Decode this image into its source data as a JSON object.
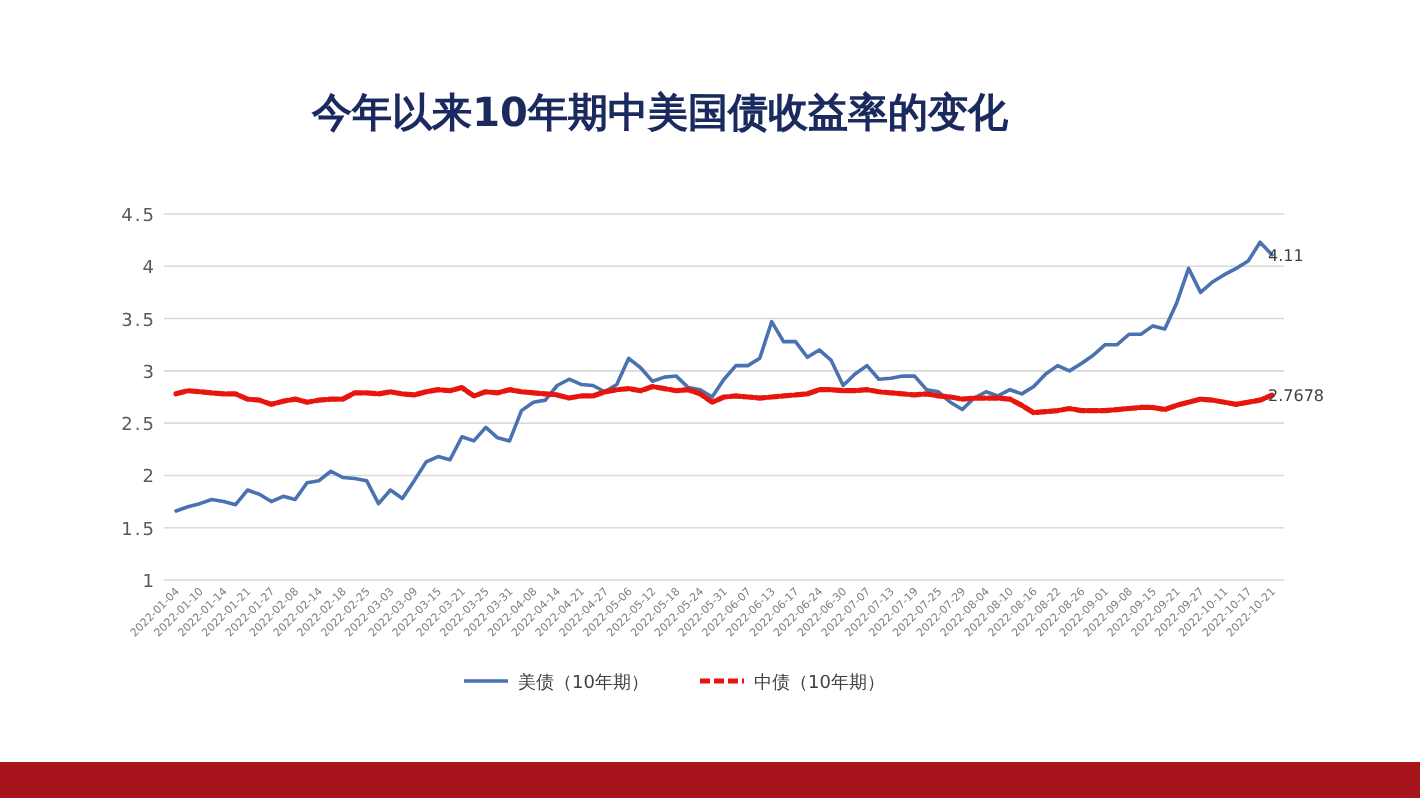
{
  "chart_data": {
    "type": "line",
    "title": "今年以来10年期中美国债收益率的变化",
    "categories": [
      "2022-01-04",
      null,
      "2022-01-10",
      null,
      "2022-01-14",
      null,
      "2022-01-21",
      null,
      "2022-01-27",
      null,
      "2022-02-08",
      null,
      "2022-02-14",
      null,
      "2022-02-18",
      null,
      "2022-02-25",
      null,
      "2022-03-03",
      null,
      "2022-03-09",
      null,
      "2022-03-15",
      null,
      "2022-03-21",
      null,
      "2022-03-25",
      null,
      "2022-03-31",
      null,
      "2022-04-08",
      null,
      "2022-04-14",
      null,
      "2022-04-21",
      null,
      "2022-04-27",
      null,
      "2022-05-06",
      null,
      "2022-05-12",
      null,
      "2022-05-18",
      null,
      "2022-05-24",
      null,
      "2022-05-31",
      null,
      "2022-06-07",
      null,
      "2022-06-13",
      null,
      "2022-06-17",
      null,
      "2022-06-24",
      null,
      "2022-06-30",
      null,
      "2022-07-07",
      null,
      "2022-07-13",
      null,
      "2022-07-19",
      null,
      "2022-07-25",
      null,
      "2022-07-29",
      null,
      "2022-08-04",
      null,
      "2022-08-10",
      null,
      "2022-08-16",
      null,
      "2022-08-22",
      null,
      "2022-08-26",
      null,
      "2022-09-01",
      null,
      "2022-09-08",
      null,
      "2022-09-15",
      null,
      "2022-09-21",
      null,
      "2022-09-27",
      null,
      "2022-10-11",
      null,
      "2022-10-17",
      null,
      "2022-10-21"
    ],
    "series": [
      {
        "name": "美债（10年期）",
        "color": "#4a72b0",
        "line_style": "solid",
        "values": [
          1.66,
          1.7,
          1.73,
          1.77,
          1.75,
          1.72,
          1.86,
          1.82,
          1.75,
          1.8,
          1.77,
          1.93,
          1.95,
          2.04,
          1.98,
          1.97,
          1.95,
          1.73,
          1.86,
          1.78,
          1.95,
          2.13,
          2.18,
          2.15,
          2.37,
          2.33,
          2.46,
          2.36,
          2.33,
          2.62,
          2.7,
          2.72,
          2.86,
          2.92,
          2.87,
          2.86,
          2.8,
          2.87,
          3.12,
          3.03,
          2.9,
          2.94,
          2.95,
          2.84,
          2.82,
          2.75,
          2.92,
          3.05,
          3.05,
          3.12,
          3.47,
          3.28,
          3.28,
          3.13,
          3.2,
          3.1,
          2.86,
          2.97,
          3.05,
          2.92,
          2.93,
          2.95,
          2.95,
          2.82,
          2.8,
          2.7,
          2.63,
          2.74,
          2.8,
          2.76,
          2.82,
          2.78,
          2.85,
          2.97,
          3.05,
          3.0,
          3.07,
          3.15,
          3.25,
          3.25,
          3.35,
          3.35,
          3.43,
          3.4,
          3.65,
          3.98,
          3.75,
          3.85,
          3.92,
          3.98,
          4.05,
          4.23,
          4.11
        ],
        "value_labels": [
          null,
          null,
          null,
          null,
          null,
          null,
          null,
          null,
          null,
          null,
          null,
          null,
          null,
          null,
          null,
          null,
          null,
          null,
          null,
          null,
          null,
          null,
          null,
          null,
          null,
          null,
          null,
          null,
          null,
          null,
          null,
          null,
          null,
          null,
          null,
          null,
          null,
          null,
          null,
          null,
          null,
          null,
          null,
          null,
          null,
          null,
          null,
          null,
          null,
          null,
          null,
          null,
          null,
          null,
          null,
          null,
          null,
          null,
          null,
          null,
          null,
          null,
          null,
          null,
          null,
          null,
          null,
          null,
          null,
          null,
          null,
          null,
          null,
          null,
          null,
          null,
          null,
          null,
          null,
          null,
          null,
          null,
          null,
          null,
          null,
          null,
          null,
          null,
          null,
          null,
          null,
          null,
          "4.11"
        ]
      },
      {
        "name": "中债（10年期）",
        "color": "#e8150f",
        "line_style": "dashed",
        "values": [
          2.78,
          2.81,
          2.8,
          2.79,
          2.78,
          2.78,
          2.73,
          2.72,
          2.68,
          2.71,
          2.73,
          2.7,
          2.72,
          2.73,
          2.73,
          2.79,
          2.79,
          2.78,
          2.8,
          2.78,
          2.77,
          2.8,
          2.82,
          2.81,
          2.84,
          2.76,
          2.8,
          2.79,
          2.82,
          2.8,
          2.79,
          2.78,
          2.77,
          2.74,
          2.76,
          2.76,
          2.8,
          2.82,
          2.83,
          2.81,
          2.85,
          2.83,
          2.81,
          2.82,
          2.78,
          2.7,
          2.75,
          2.76,
          2.75,
          2.74,
          2.75,
          2.76,
          2.77,
          2.78,
          2.82,
          2.82,
          2.81,
          2.81,
          2.82,
          2.8,
          2.79,
          2.78,
          2.77,
          2.78,
          2.76,
          2.75,
          2.73,
          2.74,
          2.74,
          2.74,
          2.73,
          2.67,
          2.6,
          2.61,
          2.62,
          2.64,
          2.62,
          2.62,
          2.62,
          2.63,
          2.64,
          2.65,
          2.65,
          2.63,
          2.67,
          2.7,
          2.73,
          2.72,
          2.7,
          2.68,
          2.7,
          2.72,
          2.7678
        ],
        "value_labels": [
          null,
          null,
          null,
          null,
          null,
          null,
          null,
          null,
          null,
          null,
          null,
          null,
          null,
          null,
          null,
          null,
          null,
          null,
          null,
          null,
          null,
          null,
          null,
          null,
          null,
          null,
          null,
          null,
          null,
          null,
          null,
          null,
          null,
          null,
          null,
          null,
          null,
          null,
          null,
          null,
          null,
          null,
          null,
          null,
          null,
          null,
          null,
          null,
          null,
          null,
          null,
          null,
          null,
          null,
          null,
          null,
          null,
          null,
          null,
          null,
          null,
          null,
          null,
          null,
          null,
          null,
          null,
          null,
          null,
          null,
          null,
          null,
          null,
          null,
          null,
          null,
          null,
          null,
          null,
          null,
          null,
          null,
          null,
          null,
          null,
          null,
          null,
          null,
          null,
          null,
          null,
          null,
          "2.7678"
        ]
      }
    ],
    "ylim": [
      1,
      4.5
    ],
    "yticks": [
      1,
      1.5,
      2,
      2.5,
      3,
      3.5,
      4,
      4.5
    ],
    "grid": "y",
    "legend": "bottom"
  }
}
